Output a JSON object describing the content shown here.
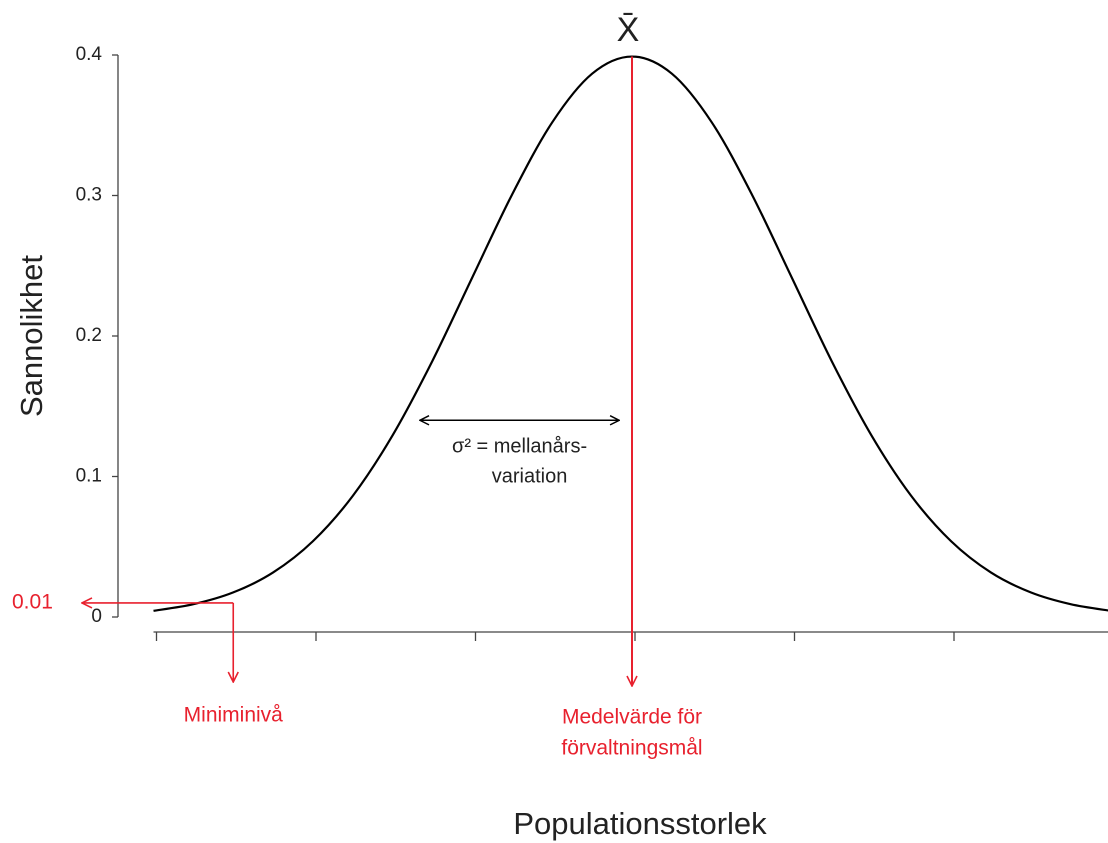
{
  "chart_data": {
    "type": "line",
    "y_label": "Sannolikhet",
    "x_label": "Populationsstorlek",
    "x": [
      -3,
      -2.75,
      -2.5,
      -2.25,
      -2,
      -1.75,
      -1.5,
      -1.25,
      -1,
      -0.75,
      -0.5,
      -0.25,
      0,
      0.25,
      0.5,
      0.75,
      1,
      1.25,
      1.5,
      1.75,
      2,
      2.25,
      2.5,
      2.75,
      3
    ],
    "values": [
      0.0044,
      0.0091,
      0.0175,
      0.0317,
      0.054,
      0.0863,
      0.1295,
      0.1826,
      0.242,
      0.3011,
      0.3521,
      0.3867,
      0.3989,
      0.3867,
      0.3521,
      0.3011,
      0.242,
      0.1826,
      0.1295,
      0.0863,
      0.054,
      0.0317,
      0.0175,
      0.0091,
      0.0044
    ],
    "color": "#000000",
    "xlim": [
      -3,
      3
    ],
    "ylim": [
      0,
      0.4
    ],
    "xticks": [
      -3,
      -2,
      -1,
      0,
      1,
      2
    ],
    "yticks": [
      0,
      0.1,
      0.2,
      0.3,
      0.4
    ],
    "annotation_color": "#e8212e",
    "annotations": {
      "mean": {
        "x": 0,
        "symbol": "X̄",
        "label": [
          "Medelvärde för",
          "förvaltningsmål"
        ]
      },
      "minimum": {
        "x": -2.5,
        "value": 0.01,
        "value_label": "0.01",
        "label": "Miniminivå"
      },
      "variance": {
        "x": [
          -1.33,
          -0.08
        ],
        "value": 0.14,
        "label": [
          "σ² = mellanårs-",
          "variation"
        ]
      }
    }
  }
}
